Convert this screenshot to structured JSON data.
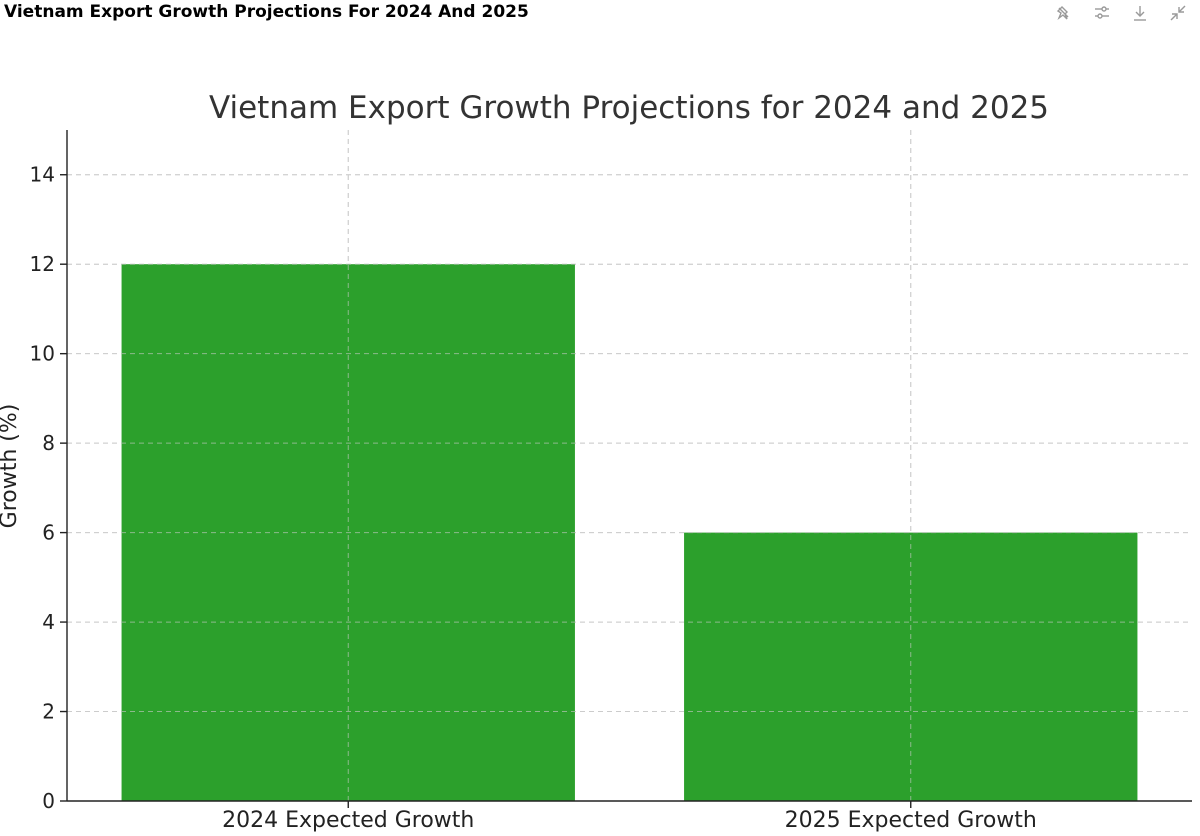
{
  "header": {
    "title": "Vietnam Export Growth Projections For 2024 And 2025",
    "tools": [
      {
        "icon": "pin-off-icon"
      },
      {
        "icon": "sliders-icon"
      },
      {
        "icon": "download-icon"
      },
      {
        "icon": "collapse-icon"
      }
    ]
  },
  "chart_data": {
    "type": "bar",
    "title": "Vietnam Export Growth Projections for 2024 and 2025",
    "xlabel": "",
    "ylabel": "Growth (%)",
    "categories": [
      "2024 Expected Growth",
      "2025 Expected Growth"
    ],
    "values": [
      12,
      6
    ],
    "ylim": [
      0,
      15
    ],
    "yticks": [
      0,
      2,
      4,
      6,
      8,
      10,
      12,
      14
    ],
    "grid": true,
    "bar_color": "#2ca02c"
  }
}
